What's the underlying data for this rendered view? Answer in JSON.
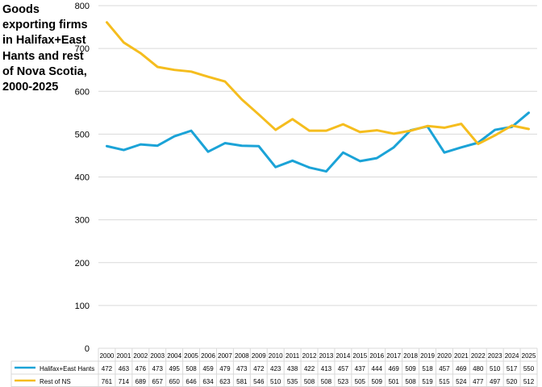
{
  "chart_data": {
    "type": "line",
    "title": "Goods exporting firms in Halifax+East Hants and rest of Nova Scotia, 2000-2025",
    "categories": [
      "2000",
      "2001",
      "2002",
      "2003",
      "2004",
      "2005",
      "2006",
      "2007",
      "2008",
      "2009",
      "2010",
      "2011",
      "2012",
      "2013",
      "2014",
      "2015",
      "2016",
      "2017",
      "2018",
      "2019",
      "2020",
      "2021",
      "2022",
      "2023",
      "2024",
      "2025"
    ],
    "series": [
      {
        "name": "Halifax+East Hants",
        "color": "#1ba3d7",
        "values": [
          472,
          463,
          476,
          473,
          495,
          508,
          459,
          479,
          473,
          472,
          423,
          438,
          422,
          413,
          457,
          437,
          444,
          469,
          509,
          518,
          457,
          469,
          480,
          510,
          517,
          550
        ]
      },
      {
        "name": "Rest of NS",
        "color": "#f5bd1e",
        "values": [
          761,
          714,
          689,
          657,
          650,
          646,
          634,
          623,
          581,
          546,
          510,
          535,
          508,
          508,
          523,
          505,
          509,
          501,
          508,
          519,
          515,
          524,
          477,
          497,
          520,
          512
        ]
      }
    ],
    "ylim": [
      0,
      800
    ],
    "yticks": [
      "0",
      "100",
      "200",
      "300",
      "400",
      "500",
      "600",
      "700",
      "800"
    ],
    "grid": true,
    "legend": "data table below chart"
  }
}
